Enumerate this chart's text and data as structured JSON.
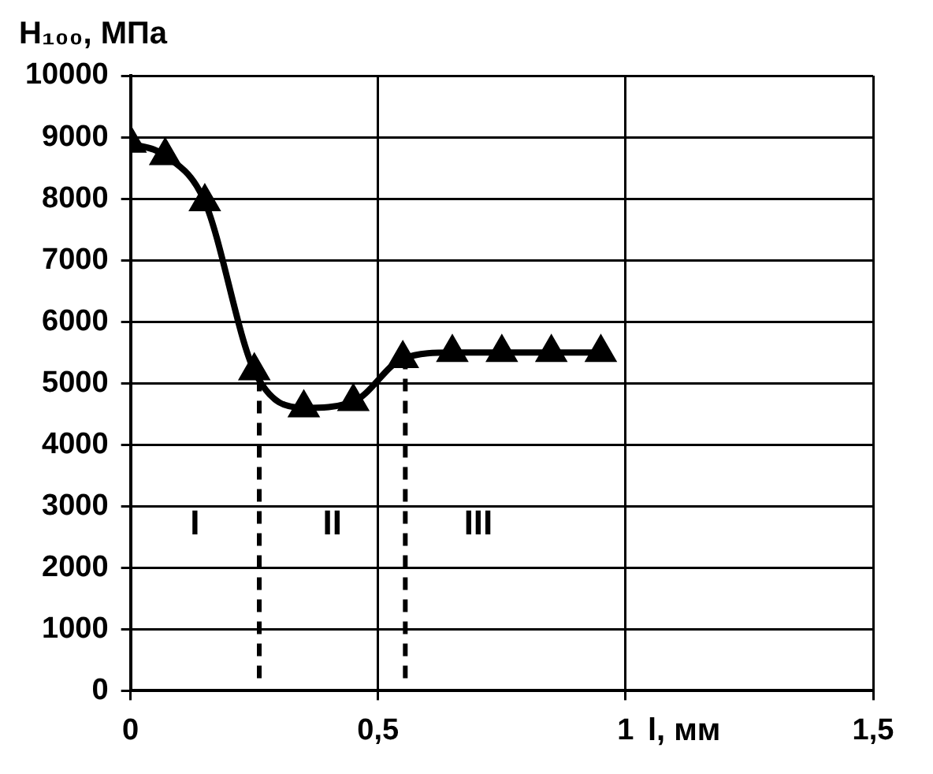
{
  "chart_data": {
    "type": "line",
    "ylabel": "H₁₀₀, МПа",
    "xlabel": "l, мм",
    "x": [
      0,
      0.07,
      0.15,
      0.25,
      0.35,
      0.45,
      0.55,
      0.65,
      0.75,
      0.85,
      0.95
    ],
    "series": [
      {
        "color": "#000000",
        "values": [
          8900,
          8700,
          7950,
          5200,
          4600,
          4700,
          5400,
          5500,
          5500,
          5500,
          5500
        ]
      }
    ],
    "xlim": [
      0,
      1.5
    ],
    "xticks": [
      0,
      {
        "value": 0.5,
        "label": "0,5"
      },
      1,
      {
        "value": 1.5,
        "label": "1,5"
      }
    ],
    "ylim": [
      0,
      10000
    ],
    "yticks": [
      0,
      1000,
      2000,
      3000,
      4000,
      5000,
      6000,
      7000,
      8000,
      9000,
      10000
    ],
    "grid": true,
    "legend": false,
    "marker": "triangle",
    "line_style": "solid",
    "ref_lines": [
      {
        "axis": "x",
        "value": 0.26,
        "line_style": "dashed",
        "color": "#000000"
      },
      {
        "axis": "x",
        "value": 0.555,
        "line_style": "dashed",
        "color": "#000000"
      }
    ],
    "annotations": [
      "I",
      "II",
      "III"
    ]
  }
}
